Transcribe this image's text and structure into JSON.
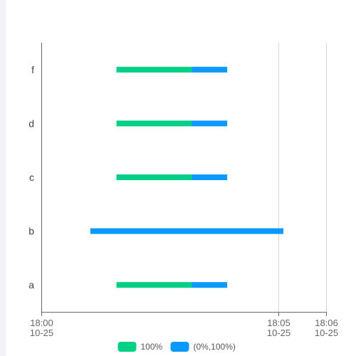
{
  "chart_data": {
    "type": "bar",
    "orientation": "horizontal-range",
    "categories": [
      "a",
      "b",
      "c",
      "d",
      "f"
    ],
    "x_axis": {
      "ticks": [
        {
          "value": "18:00",
          "line1": "18:00",
          "line2": "10-25"
        },
        {
          "value": "18:05",
          "line1": "18:05",
          "line2": "10-25"
        },
        {
          "value": "18:06",
          "line1": "18:06",
          "line2": "10-25"
        }
      ],
      "range": [
        "18:00",
        "18:06"
      ],
      "vertical_grid_at": [
        "18:05",
        "18:06"
      ]
    },
    "series": [
      {
        "name": "100%",
        "color": "#00d085",
        "segments": [
          {
            "category": "a",
            "start": "18:01:35",
            "end": "18:03:10"
          },
          {
            "category": "c",
            "start": "18:01:35",
            "end": "18:03:10"
          },
          {
            "category": "d",
            "start": "18:01:35",
            "end": "18:03:10"
          },
          {
            "category": "f",
            "start": "18:01:35",
            "end": "18:03:10"
          }
        ]
      },
      {
        "name": "(0%,100%)",
        "color": "#0a99ff",
        "segments": [
          {
            "category": "a",
            "start": "18:03:10",
            "end": "18:03:55"
          },
          {
            "category": "b",
            "start": "18:01:02",
            "end": "18:05:06"
          },
          {
            "category": "c",
            "start": "18:03:10",
            "end": "18:03:55"
          },
          {
            "category": "d",
            "start": "18:03:10",
            "end": "18:03:55"
          },
          {
            "category": "f",
            "start": "18:03:10",
            "end": "18:03:55"
          }
        ]
      }
    ],
    "legend": {
      "position": "bottom-center"
    },
    "grid": "vertical"
  }
}
